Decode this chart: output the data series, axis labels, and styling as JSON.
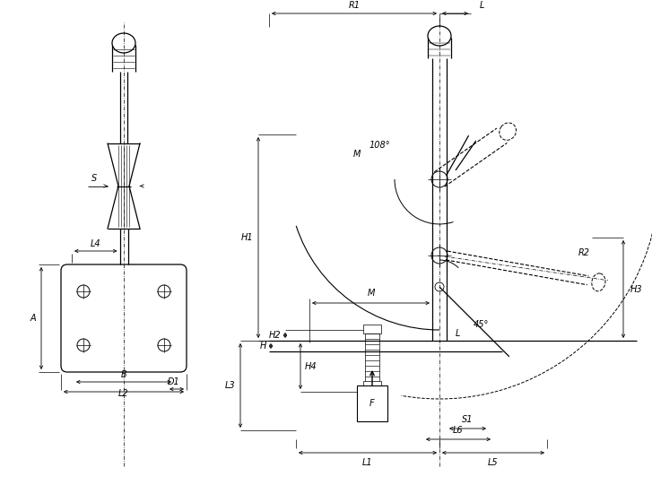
{
  "bg_color": "#ffffff",
  "line_color": "#000000",
  "fig_width": 7.27,
  "fig_height": 5.41,
  "dpi": 100,
  "labels": {
    "S": "S",
    "L4": "L4",
    "A": "A",
    "D1": "D1",
    "B": "B",
    "L2": "L2",
    "H1": "H1",
    "H2": "H2",
    "H3": "H3",
    "H4": "H4",
    "H": "H",
    "L": "L",
    "L1": "L1",
    "L3": "L3",
    "L5": "L5",
    "L6": "L6",
    "M": "M",
    "R1": "R1",
    "R2": "R2",
    "S1": "S1",
    "F": "F",
    "angle1": "108°",
    "angle2": "45°"
  },
  "lw_main": 0.9,
  "lw_thin": 0.5,
  "fontsize": 7
}
